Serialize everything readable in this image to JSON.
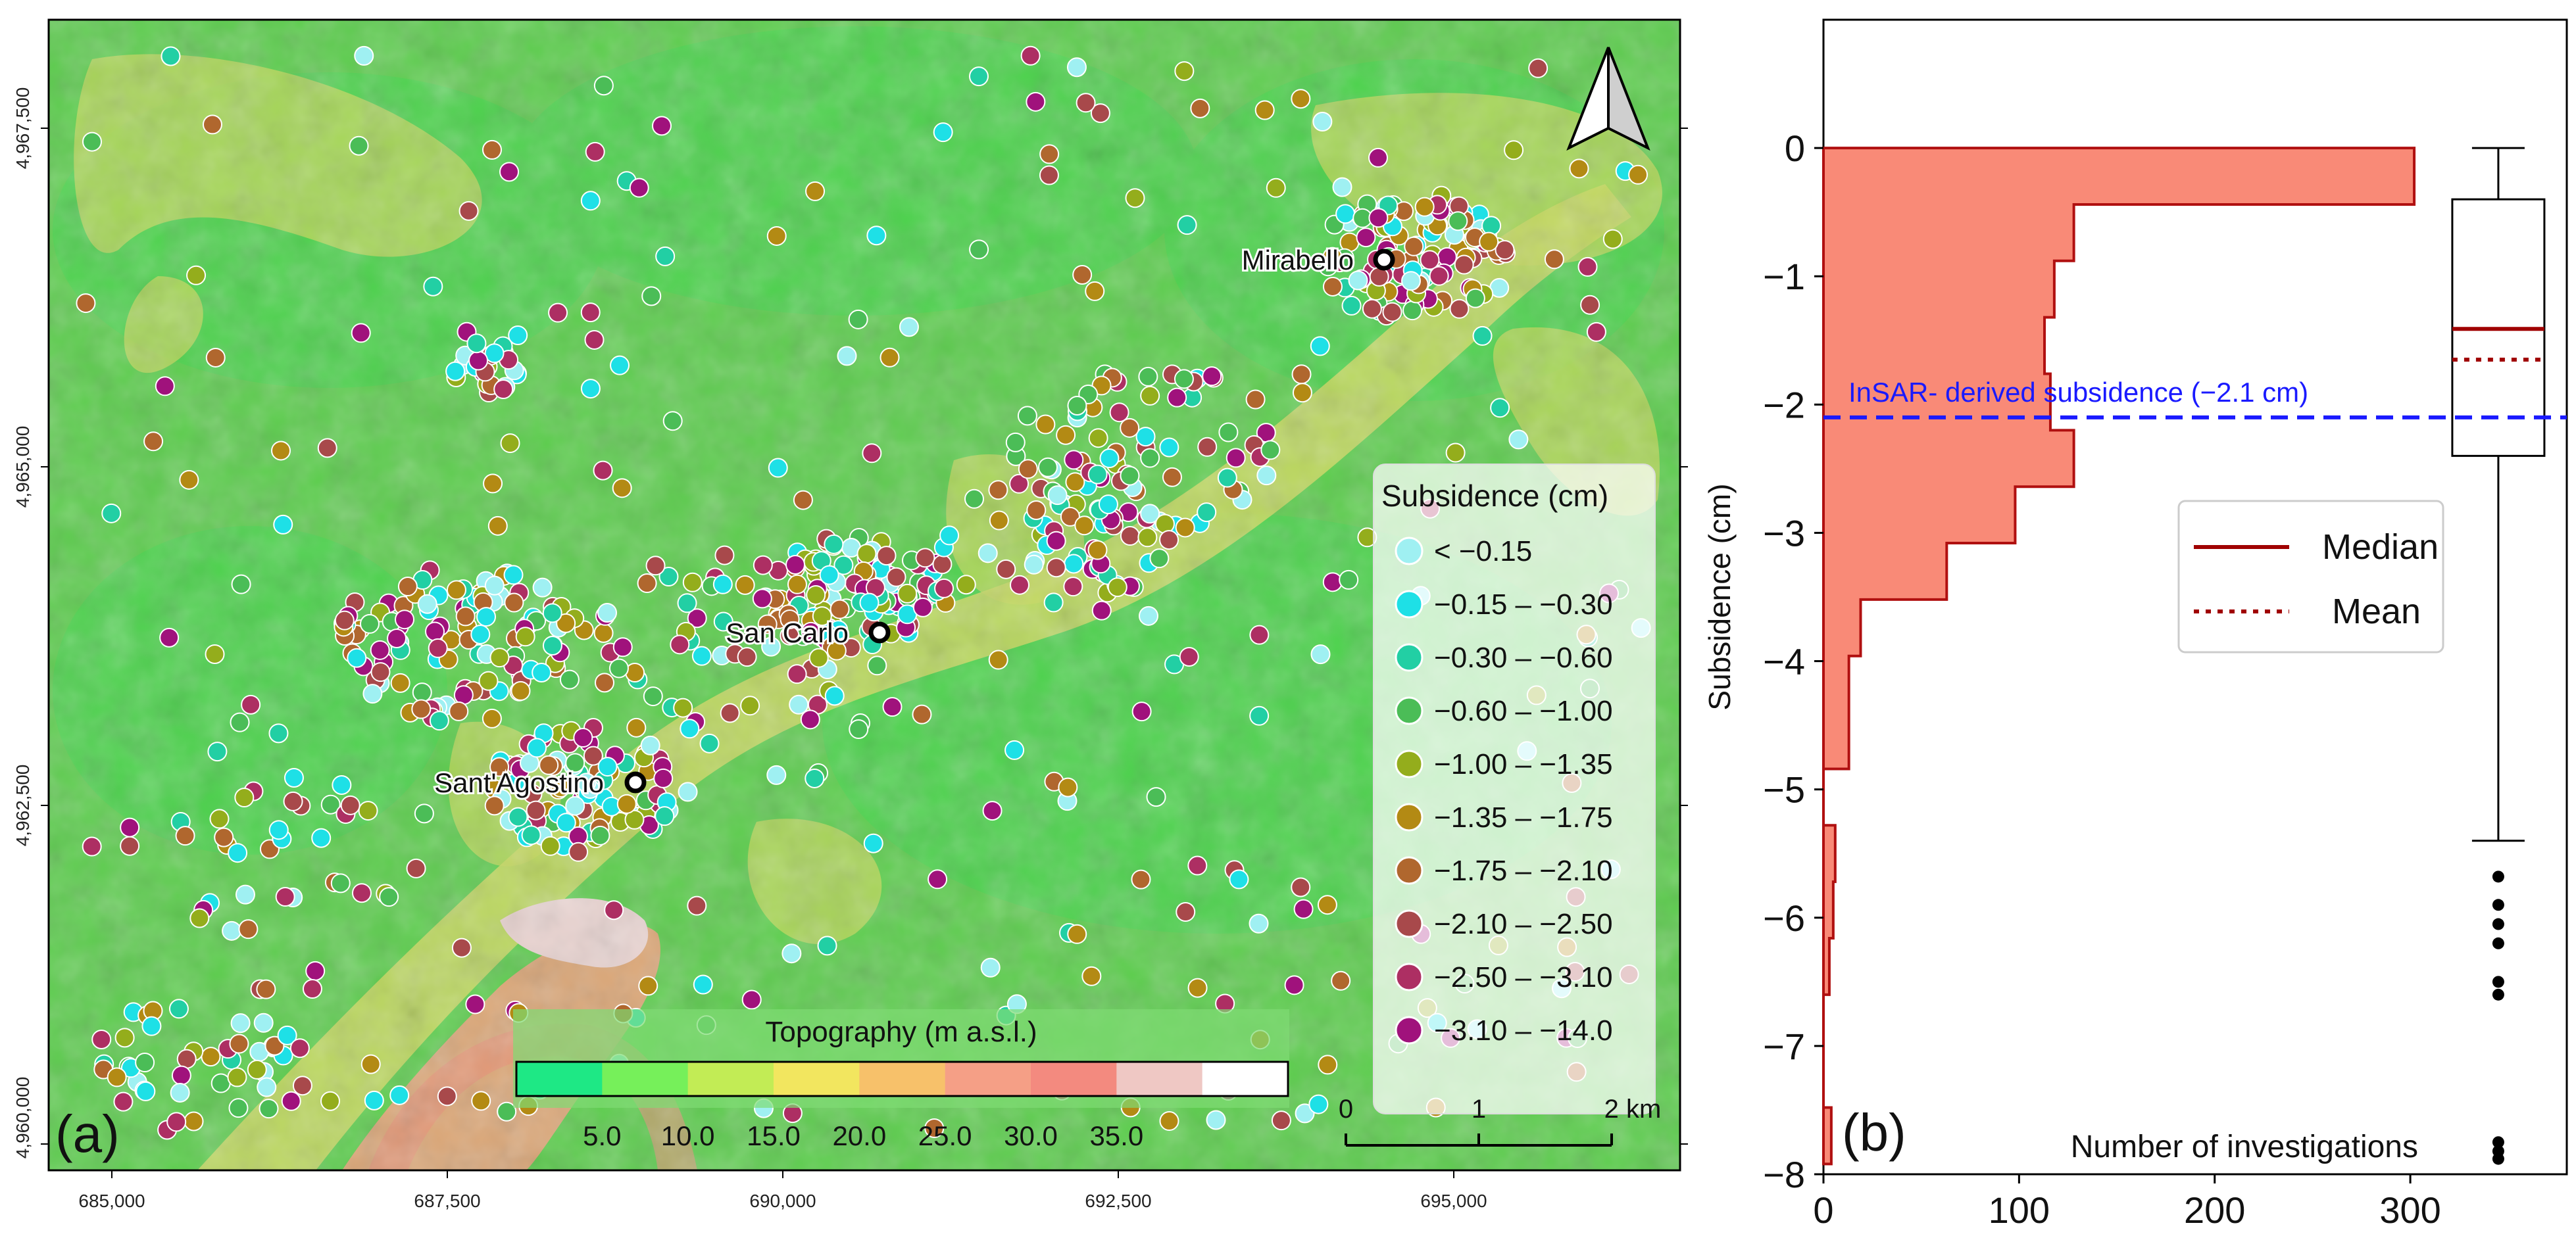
{
  "map_panel": {
    "label": "(a)",
    "x_ticks": [
      "685,000",
      "687,500",
      "690,000",
      "692,500",
      "695,000"
    ],
    "y_ticks": [
      "4,967,500",
      "4,965,000",
      "4,962,500",
      "4,960,000"
    ],
    "towns": [
      {
        "name": "Mirabello"
      },
      {
        "name": "San Carlo"
      },
      {
        "name": "Sant'Agostino"
      }
    ],
    "legend": {
      "title": "Subsidence (cm)",
      "classes": [
        {
          "label": "< −0.15",
          "color": "#9ff0f2"
        },
        {
          "label": "−0.15 – −0.30",
          "color": "#1ee0e6"
        },
        {
          "label": "−0.30 – −0.60",
          "color": "#22cfa4"
        },
        {
          "label": "−0.60 – −1.00",
          "color": "#4bbd57"
        },
        {
          "label": "−1.00 – −1.35",
          "color": "#94ad1c"
        },
        {
          "label": "−1.35 – −1.75",
          "color": "#b38a14"
        },
        {
          "label": "−1.75 – −2.10",
          "color": "#b0672e"
        },
        {
          "label": "−2.10 – −2.50",
          "color": "#a8494b"
        },
        {
          "label": "−2.50 – −3.10",
          "color": "#ad2f63"
        },
        {
          "label": "−3.10 – −14.0",
          "color": "#a0127c"
        }
      ]
    },
    "topography": {
      "title": "Topography (m a.s.l.)",
      "ticks": [
        "5.0",
        "10.0",
        "15.0",
        "20.0",
        "25.0",
        "30.0",
        "35.0"
      ],
      "colors": [
        "#1ee885",
        "#76f05a",
        "#c2ec55",
        "#f2e65f",
        "#f7c16a",
        "#f59f86",
        "#f38a7f",
        "#efc8c4",
        "#ffffff"
      ]
    },
    "scale_bar": {
      "ticks": [
        "0",
        "1",
        "2 km"
      ]
    },
    "colors": {
      "background": "#66cc55",
      "lowland": "#4fd14a",
      "ridge": "#c0d659"
    }
  },
  "chart_data": {
    "type": "histogram+boxplot",
    "panel_label": "(b)",
    "xlabel": "Number of investigations",
    "ylabel": "Subsidence (cm)",
    "xlim": [
      0,
      380
    ],
    "ylim": [
      -8,
      1
    ],
    "x_ticks": [
      0,
      100,
      200,
      300
    ],
    "y_ticks": [
      0,
      -1,
      -2,
      -3,
      -4,
      -5,
      -6,
      -7,
      -8
    ],
    "histogram_steps": [
      {
        "top": 0.0,
        "bottom": -0.44,
        "count": 302
      },
      {
        "top": -0.44,
        "bottom": -0.88,
        "count": 128
      },
      {
        "top": -0.88,
        "bottom": -1.32,
        "count": 118
      },
      {
        "top": -1.32,
        "bottom": -1.76,
        "count": 113
      },
      {
        "top": -1.76,
        "bottom": -2.2,
        "count": 116
      },
      {
        "top": -2.2,
        "bottom": -2.64,
        "count": 128
      },
      {
        "top": -2.64,
        "bottom": -3.08,
        "count": 98
      },
      {
        "top": -3.08,
        "bottom": -3.52,
        "count": 63
      },
      {
        "top": -3.52,
        "bottom": -3.96,
        "count": 19
      },
      {
        "top": -3.96,
        "bottom": -4.4,
        "count": 13
      },
      {
        "top": -4.4,
        "bottom": -4.84,
        "count": 13
      },
      {
        "top": -4.84,
        "bottom": -5.28,
        "count": 0
      },
      {
        "top": -5.28,
        "bottom": -5.72,
        "count": 6
      },
      {
        "top": -5.72,
        "bottom": -6.16,
        "count": 5
      },
      {
        "top": -6.16,
        "bottom": -6.6,
        "count": 3
      },
      {
        "top": -6.6,
        "bottom": -7.48,
        "count": 0
      },
      {
        "top": -7.48,
        "bottom": -7.92,
        "count": 4
      }
    ],
    "boxplot": {
      "x": 345,
      "whisker_top": 0.0,
      "q3": -0.4,
      "median": -1.41,
      "mean": -1.65,
      "q1": -2.4,
      "whisker_bottom": -5.4,
      "outliers": [
        -5.68,
        -5.9,
        -6.05,
        -6.2,
        -6.5,
        -6.6,
        -7.75,
        -7.82,
        -7.88
      ]
    },
    "insar_line": {
      "value": -2.1,
      "label": "InSAR- derived subsidence (−2.1 cm)",
      "color": "#1a1aff"
    },
    "legend": {
      "median": "Median",
      "mean": "Mean"
    },
    "colors": {
      "hist_fill": "#f98a77",
      "hist_edge": "#b01010",
      "median": "#a00000",
      "mean": "#a00000"
    }
  }
}
